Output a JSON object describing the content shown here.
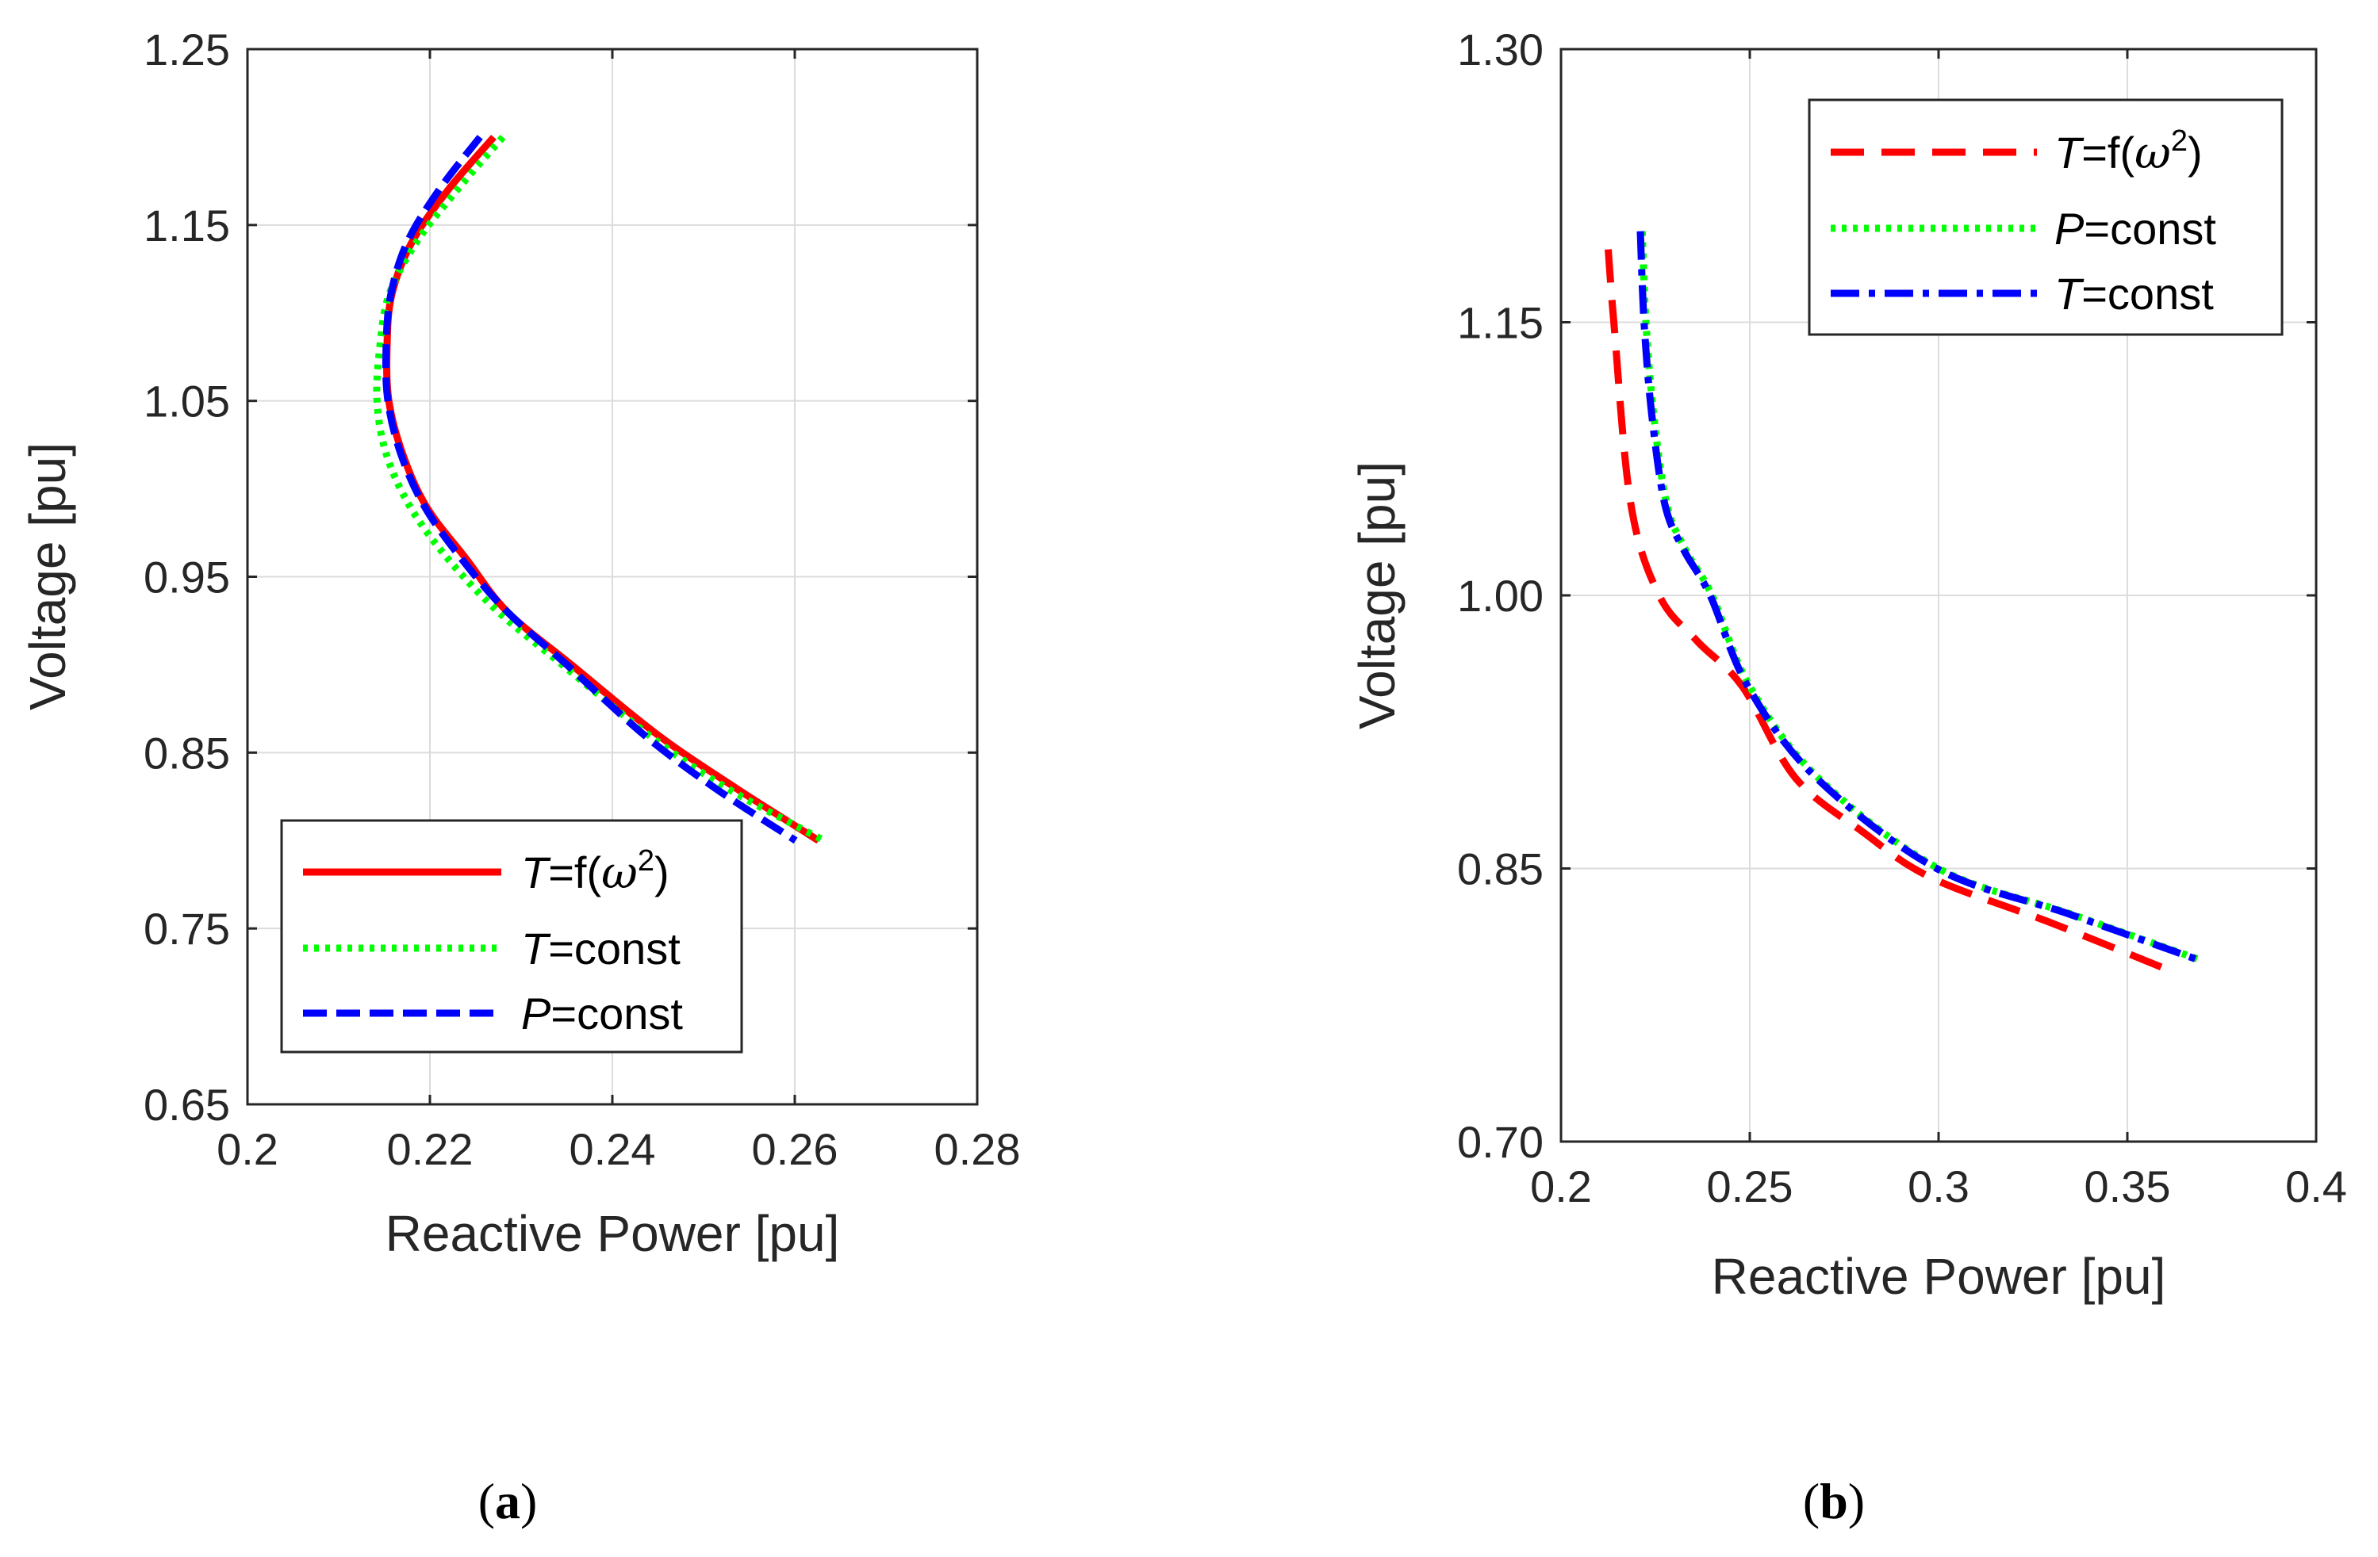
{
  "chart_data": [
    {
      "type": "line",
      "panel_label": "a",
      "xlabel": "Reactive Power [pu]",
      "ylabel": "Voltage [pu]",
      "xlim": [
        0.2,
        0.28
      ],
      "ylim": [
        0.65,
        1.25
      ],
      "xticks": [
        "0.2",
        "0.22",
        "0.24",
        "0.26",
        "0.28"
      ],
      "yticks": [
        "0.65",
        "0.75",
        "0.85",
        "0.95",
        "1.05",
        "1.15",
        "1.25"
      ],
      "grid": true,
      "legend_position": "bottom-left",
      "series": [
        {
          "name": "T=f(ω²)",
          "legend": {
            "italic": "T",
            "text": "=f(",
            "omega": "ω",
            "sup": "2",
            "close": ")"
          },
          "color": "#ff0000",
          "style": "solid",
          "x": [
            0.227,
            0.222,
            0.218,
            0.2158,
            0.2153,
            0.2155,
            0.217,
            0.2196,
            0.224,
            0.2285,
            0.2355,
            0.245,
            0.2535,
            0.2626
          ],
          "y": [
            1.2,
            1.17,
            1.14,
            1.11,
            1.08,
            1.05,
            1.02,
            0.99,
            0.96,
            0.93,
            0.9,
            0.86,
            0.83,
            0.8
          ]
        },
        {
          "name": "T=const",
          "legend": {
            "italic": "T",
            "text": "=const"
          },
          "color": "#00ff00",
          "style": "dotted",
          "x": [
            0.228,
            0.223,
            0.2185,
            0.2155,
            0.2145,
            0.2142,
            0.2152,
            0.2178,
            0.222,
            0.2275,
            0.2345,
            0.244,
            0.2525,
            0.2632
          ],
          "y": [
            1.2,
            1.17,
            1.14,
            1.11,
            1.08,
            1.05,
            1.02,
            0.99,
            0.96,
            0.93,
            0.9,
            0.86,
            0.83,
            0.8
          ]
        },
        {
          "name": "P=const",
          "legend": {
            "italic": "P",
            "text": "=const"
          },
          "color": "#0000ff",
          "style": "dashed",
          "x": [
            0.2255,
            0.221,
            0.2175,
            0.2157,
            0.2152,
            0.2154,
            0.2168,
            0.2194,
            0.2235,
            0.2285,
            0.235,
            0.2435,
            0.2512,
            0.2601
          ],
          "y": [
            1.2,
            1.17,
            1.14,
            1.11,
            1.08,
            1.05,
            1.02,
            0.99,
            0.96,
            0.93,
            0.9,
            0.86,
            0.83,
            0.8
          ]
        }
      ]
    },
    {
      "type": "line",
      "panel_label": "b",
      "xlabel": "Reactive Power [pu]",
      "ylabel": "Voltage [pu]",
      "xlim": [
        0.2,
        0.4
      ],
      "ylim": [
        0.7,
        1.3
      ],
      "xticks": [
        "0.2",
        "0.25",
        "0.3",
        "0.35",
        "0.4"
      ],
      "yticks": [
        "0.70",
        "0.85",
        "1.00",
        "1.15",
        "1.30"
      ],
      "grid": true,
      "legend_position": "top-right",
      "series": [
        {
          "name": "T=f(ω²)",
          "legend": {
            "italic": "T",
            "text": "=f(",
            "omega": "ω",
            "sup": "2",
            "close": ")"
          },
          "color": "#ff0000",
          "style": "dashed",
          "x": [
            0.2125,
            0.214,
            0.2185,
            0.226,
            0.236,
            0.248,
            0.262,
            0.28,
            0.298,
            0.33,
            0.36
          ],
          "y": [
            1.19,
            1.15,
            1.05,
            1.0,
            0.975,
            0.95,
            0.9,
            0.87,
            0.845,
            0.82,
            0.795
          ]
        },
        {
          "name": "P=const",
          "legend": {
            "italic": "P",
            "text": "=const"
          },
          "color": "#00ff00",
          "style": "dotted",
          "x": [
            0.2215,
            0.2225,
            0.2245,
            0.228,
            0.233,
            0.24,
            0.25,
            0.268,
            0.3,
            0.335,
            0.369
          ],
          "y": [
            1.2,
            1.15,
            1.1,
            1.05,
            1.025,
            1.0,
            0.95,
            0.9,
            0.85,
            0.825,
            0.8
          ]
        },
        {
          "name": "T=const",
          "legend": {
            "italic": "T",
            "text": "=const"
          },
          "color": "#0000ff",
          "style": "dashdot",
          "x": [
            0.221,
            0.222,
            0.224,
            0.2275,
            0.2325,
            0.2395,
            0.2495,
            0.2675,
            0.2995,
            0.3345,
            0.3685
          ],
          "y": [
            1.2,
            1.15,
            1.1,
            1.05,
            1.025,
            1.0,
            0.95,
            0.9,
            0.85,
            0.825,
            0.8
          ]
        }
      ]
    }
  ]
}
